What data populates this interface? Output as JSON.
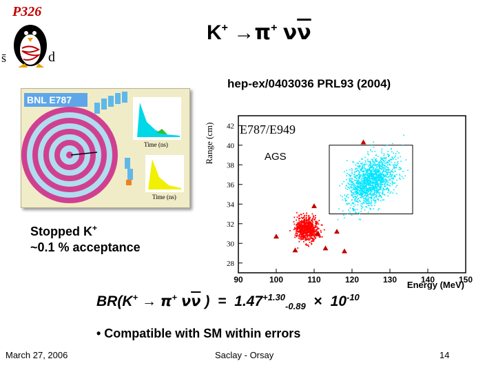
{
  "logo": {
    "label": "P326",
    "left_quark": "s̄",
    "right_quark": "d"
  },
  "title": {
    "kaon": "K",
    "kaon_charge": "+",
    "arrow": "→",
    "pion": "π",
    "pion_charge": "+",
    "neutrinos_plain": "ν",
    "neutrinos_bar": "ν"
  },
  "reference": "hep-ex/0403036 PRL93 (2004)",
  "detector": {
    "label": "BNL  E787",
    "axis_label_top": "Time (ns)",
    "axis_label_bottom": "Time (ns)"
  },
  "stopped": {
    "line1": "Stopped K",
    "line1_charge": "+",
    "line2": "~0.1 % acceptance"
  },
  "chart_data": {
    "type": "scatter",
    "title": "E787/E949",
    "annotation": "AGS",
    "xlabel": "Energy (MeV)",
    "ylabel": "Range (cm)",
    "xlim": [
      90,
      150
    ],
    "ylim": [
      27,
      43
    ],
    "x_ticks": [
      90,
      100,
      110,
      120,
      130,
      140,
      150
    ],
    "y_ticks": [
      28,
      30,
      32,
      34,
      36,
      38,
      40,
      42
    ],
    "box": {
      "x": [
        114,
        136
      ],
      "y": [
        33,
        40
      ]
    },
    "series": [
      {
        "color": "#00e5ff",
        "center": [
          125,
          36.5
        ],
        "points_estimated": true
      },
      {
        "color": "#ff0000",
        "center": [
          108,
          31.5
        ],
        "points_estimated": true
      }
    ],
    "candidates": [
      [
        111,
        31
      ],
      [
        113,
        29.5
      ],
      [
        110,
        33.8
      ],
      [
        123,
        40.3
      ],
      [
        118,
        29.2
      ],
      [
        116,
        31.2
      ],
      [
        105,
        29.3
      ],
      [
        100,
        30.7
      ]
    ]
  },
  "result": {
    "prefix": "BR(K",
    "kaon_charge": "+",
    "arrow": "→",
    "pion": "π",
    "pion_charge": "+",
    "nu": "ν",
    "nubar": "ν",
    "close": ")",
    "equals": "=",
    "value": "1.47",
    "plus_err": "+1.30",
    "minus_err": "-0.89",
    "times": "×",
    "base": "10",
    "exponent": "-10"
  },
  "bullet": "• Compatible with SM within errors",
  "footer": {
    "date": "March 27, 2006",
    "venue": "Saclay - Orsay",
    "page": "14"
  }
}
